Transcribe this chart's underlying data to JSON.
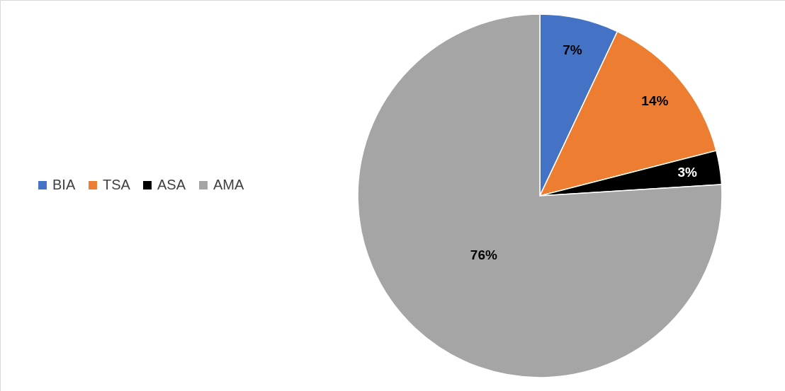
{
  "chart_data": {
    "type": "pie",
    "categories": [
      "BIA",
      "TSA",
      "ASA",
      "AMA"
    ],
    "values": [
      7,
      14,
      3,
      76
    ],
    "colors": [
      "#4472c4",
      "#ed7d31",
      "#000000",
      "#a5a5a5"
    ],
    "value_labels": [
      "7%",
      "14%",
      "3%",
      "76%"
    ],
    "legend": "left"
  }
}
